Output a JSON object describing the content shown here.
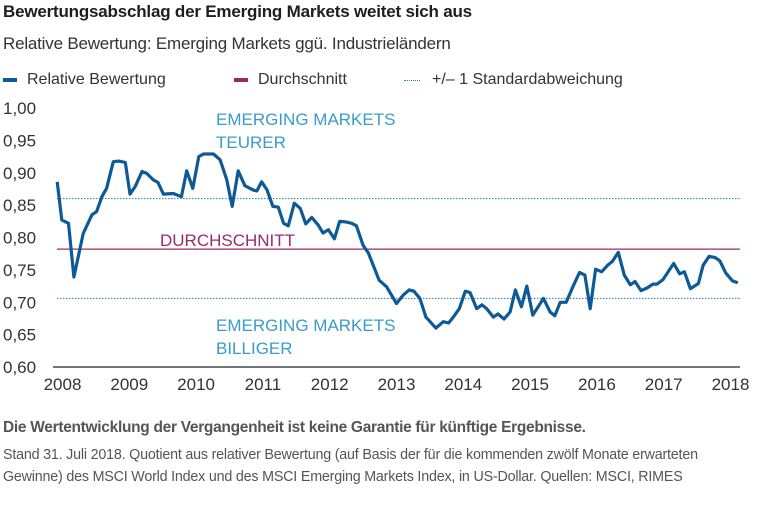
{
  "title": "Bewertungsabschlag der Emerging Markets weitet sich aus",
  "subtitle": "Relative Bewertung: Emerging Markets ggü. Industrieländern",
  "legend": [
    {
      "label": "Relative Bewertung",
      "color": "#0d5a96",
      "style": "solid-line"
    },
    {
      "label": "Durchschnitt",
      "color": "#9c2a6b",
      "style": "solid-line"
    },
    {
      "label": "+/– 1 Standardabweichung",
      "color": "#2a7fa3",
      "style": "dotted-line"
    }
  ],
  "annotations": {
    "upper_line1": "EMERGING MARKETS",
    "upper_line2": "TEURER",
    "average": "DURCHSCHNITT",
    "lower_line1": "EMERGING MARKETS",
    "lower_line2": "BILLIGER",
    "color_zone": "#3a9cc9",
    "color_average": "#9c2a6b"
  },
  "footer": {
    "disclaimer": "Die Wertentwicklung der Vergangenheit ist keine Garantie für künftige Ergebnisse.",
    "note": "Stand 31. Juli 2018. Quotient aus relativer Bewertung (auf Basis der für die kommenden zwölf Monate erwarteten Gewinne) des MSCI World Index und des MSCI Emerging Markets Index, in US-Dollar. Quellen: MSCI, RIMES"
  },
  "chart_data": {
    "type": "line",
    "title": "Bewertungsabschlag der Emerging Markets weitet sich aus",
    "subtitle": "Relative Bewertung: Emerging Markets ggü. Industrieländern",
    "xlim": [
      2007.9,
      2018.12
    ],
    "ylim": [
      0.6,
      1.0
    ],
    "x_ticks": [
      "2008",
      "2009",
      "2010",
      "2011",
      "2012",
      "2013",
      "2014",
      "2015",
      "2016",
      "2017",
      "2018"
    ],
    "y_ticks": [
      "1,00",
      "0,95",
      "0,90",
      "0,85",
      "0,80",
      "0,75",
      "0,70",
      "0,65",
      "0,60"
    ],
    "grid": false,
    "legend_position": "top",
    "reference_lines": [
      {
        "name": "Durchschnitt",
        "value": 0.782,
        "style": "solid"
      },
      {
        "name": "+/– 1 Standardabweichung",
        "value": 0.86,
        "style": "dotted"
      },
      {
        "name": "+/– 1 Standardabweichung",
        "value": 0.706,
        "style": "dotted"
      }
    ],
    "series": [
      {
        "name": "Relative Bewertung",
        "x": [
          2007.92,
          2007.99,
          2008.09,
          2008.17,
          2008.31,
          2008.44,
          2008.51,
          2008.59,
          2008.66,
          2008.76,
          2008.84,
          2008.94,
          2009.01,
          2009.09,
          2009.19,
          2009.26,
          2009.36,
          2009.43,
          2009.51,
          2009.66,
          2009.78,
          2009.86,
          2009.95,
          2010.04,
          2010.11,
          2010.26,
          2010.36,
          2010.46,
          2010.54,
          2010.63,
          2010.73,
          2010.86,
          2010.91,
          2010.98,
          2011.06,
          2011.15,
          2011.23,
          2011.31,
          2011.38,
          2011.47,
          2011.56,
          2011.64,
          2011.73,
          2011.83,
          2011.9,
          2011.98,
          2012.07,
          2012.15,
          2012.25,
          2012.33,
          2012.4,
          2012.5,
          2012.58,
          2012.74,
          2012.85,
          2013.0,
          2013.1,
          2013.19,
          2013.26,
          2013.35,
          2013.44,
          2013.59,
          2013.7,
          2013.78,
          2013.85,
          2013.94,
          2014.03,
          2014.1,
          2014.2,
          2014.28,
          2014.35,
          2014.45,
          2014.52,
          2014.61,
          2014.7,
          2014.78,
          2014.87,
          2014.95,
          2015.04,
          2015.2,
          2015.3,
          2015.37,
          2015.45,
          2015.54,
          2015.64,
          2015.74,
          2015.82,
          2015.9,
          2015.98,
          2016.07,
          2016.16,
          2016.23,
          2016.32,
          2016.41,
          2016.5,
          2016.57,
          2016.66,
          2016.75,
          2016.84,
          2016.9,
          2016.99,
          2017.08,
          2017.15,
          2017.24,
          2017.31,
          2017.4,
          2017.52,
          2017.59,
          2017.68,
          2017.77,
          2017.84,
          2017.93,
          2018.03,
          2018.11
        ],
        "y": [
          0.886,
          0.827,
          0.822,
          0.739,
          0.806,
          0.835,
          0.84,
          0.863,
          0.876,
          0.917,
          0.918,
          0.916,
          0.867,
          0.879,
          0.902,
          0.899,
          0.889,
          0.885,
          0.867,
          0.868,
          0.863,
          0.903,
          0.876,
          0.925,
          0.929,
          0.929,
          0.92,
          0.889,
          0.848,
          0.903,
          0.88,
          0.873,
          0.872,
          0.886,
          0.874,
          0.848,
          0.847,
          0.822,
          0.818,
          0.853,
          0.845,
          0.821,
          0.831,
          0.819,
          0.807,
          0.812,
          0.798,
          0.825,
          0.824,
          0.822,
          0.818,
          0.788,
          0.776,
          0.734,
          0.724,
          0.698,
          0.711,
          0.719,
          0.717,
          0.706,
          0.677,
          0.66,
          0.67,
          0.668,
          0.677,
          0.69,
          0.717,
          0.715,
          0.69,
          0.696,
          0.69,
          0.677,
          0.682,
          0.674,
          0.685,
          0.719,
          0.693,
          0.725,
          0.68,
          0.706,
          0.685,
          0.679,
          0.7,
          0.7,
          0.724,
          0.746,
          0.742,
          0.69,
          0.751,
          0.747,
          0.757,
          0.763,
          0.777,
          0.742,
          0.727,
          0.732,
          0.718,
          0.722,
          0.728,
          0.728,
          0.735,
          0.749,
          0.76,
          0.744,
          0.747,
          0.721,
          0.729,
          0.757,
          0.771,
          0.769,
          0.764,
          0.745,
          0.733,
          0.73
        ]
      }
    ]
  }
}
